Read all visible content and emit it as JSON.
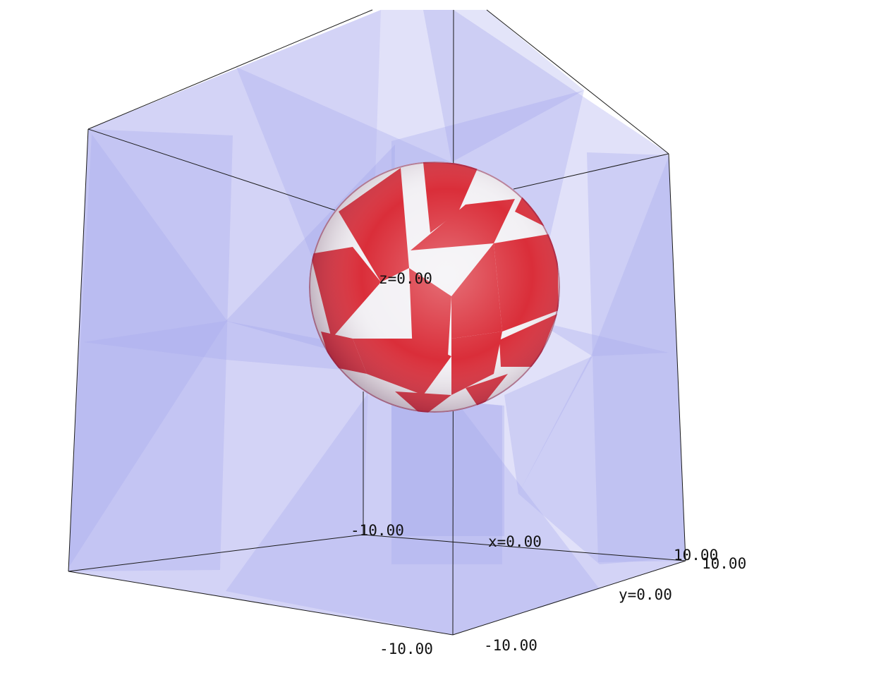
{
  "plot": {
    "labels": {
      "z_label": "z=0.00",
      "x_label": "x=0.00",
      "y_label": "y=0.00",
      "x_min": "-10.00",
      "x_max": "10.00",
      "y_min": "-10.00",
      "y_max": "10.00",
      "z_min": "-10.00"
    },
    "sphere": {
      "checker_colors": [
        "#d8232f",
        "#f2f0f4"
      ],
      "rim_color": "#8a1f4a"
    },
    "box": {
      "face_color": "#c8c8f4",
      "panel_color": "#a9abee",
      "edge_color": "#1a1a1a"
    }
  }
}
